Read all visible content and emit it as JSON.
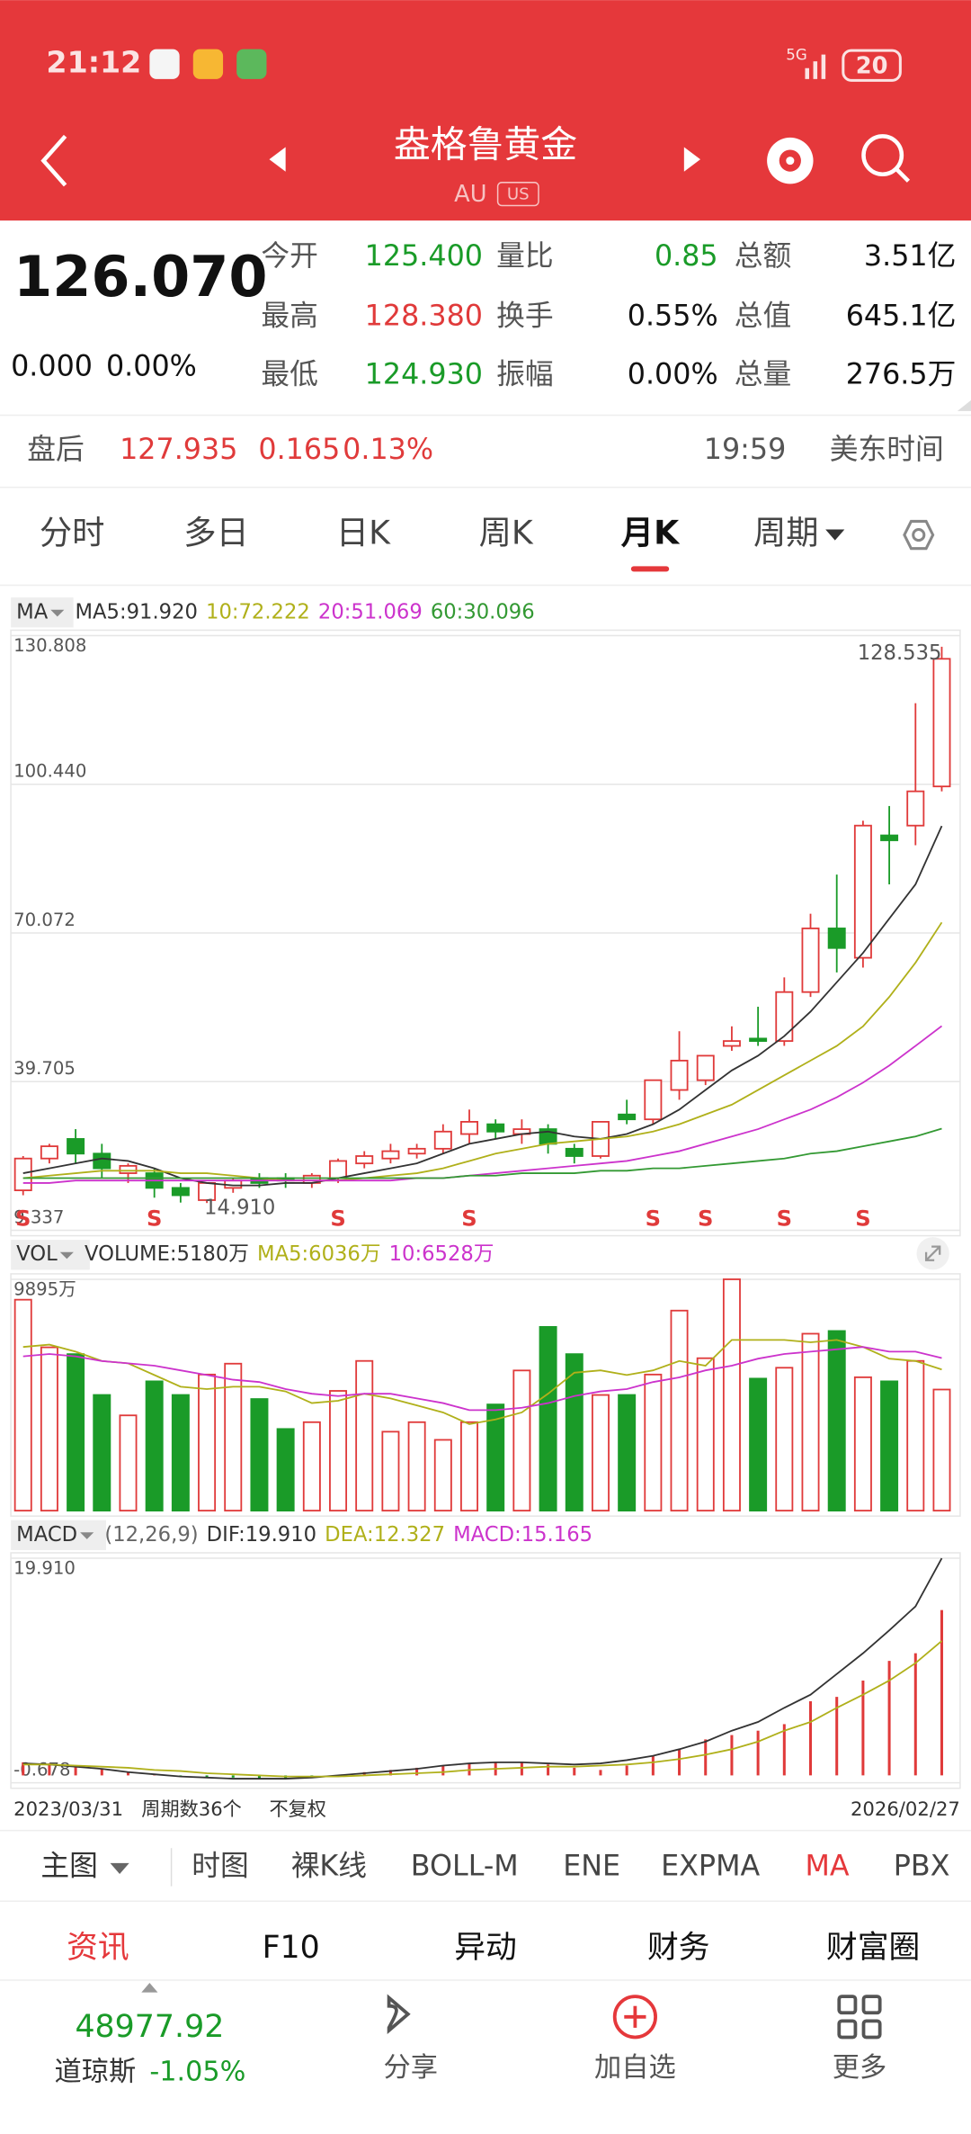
{
  "status": {
    "time": "21:12",
    "network": "5G",
    "battery": "20"
  },
  "header": {
    "title": "盎格鲁黄金",
    "ticker": "AU",
    "market": "US"
  },
  "quote": {
    "price": "126.070",
    "change": "0.000",
    "change_pct": "0.00%",
    "fields": [
      [
        {
          "label": "今开",
          "value": "125.400",
          "color": "#1a9b28"
        },
        {
          "label": "量比",
          "value": "0.85",
          "color": "#1a9b28"
        },
        {
          "label": "总额",
          "value": "3.51亿",
          "color": "#111111"
        }
      ],
      [
        {
          "label": "最高",
          "value": "128.380",
          "color": "#e03a3a"
        },
        {
          "label": "换手",
          "value": "0.55%",
          "color": "#111111"
        },
        {
          "label": "总值",
          "value": "645.1亿",
          "color": "#111111"
        }
      ],
      [
        {
          "label": "最低",
          "value": "124.930",
          "color": "#1a9b28"
        },
        {
          "label": "振幅",
          "value": "0.00%",
          "color": "#111111"
        },
        {
          "label": "总量",
          "value": "276.5万",
          "color": "#111111"
        }
      ]
    ]
  },
  "after_hours": {
    "label": "盘后",
    "price": "127.935",
    "change": "0.165",
    "change_pct": "0.13%",
    "time": "19:59",
    "zone": "美东时间"
  },
  "tabs": {
    "items": [
      "分时",
      "多日",
      "日K",
      "周K",
      "月K",
      "周期"
    ],
    "active": 4
  },
  "chart_data": [
    {
      "type": "candlestick",
      "indicator": "MA",
      "up_color": "#e03a3a",
      "down_color": "#1a9b28",
      "candles": {
        "open": [
          17.5,
          24,
          28,
          25,
          21,
          21,
          18,
          15.5,
          18,
          20,
          20,
          19,
          20,
          23,
          24,
          25,
          26,
          29,
          31,
          29,
          30,
          26,
          24.5,
          33,
          32,
          38,
          40,
          47,
          48.5,
          48,
          58,
          71,
          65,
          90,
          92,
          100
        ],
        "high": [
          24.5,
          27,
          30,
          27,
          23,
          22,
          19,
          19,
          20,
          21,
          21,
          21,
          24,
          25.5,
          27,
          27,
          31,
          34,
          32,
          32,
          31,
          27,
          31,
          36,
          40,
          50,
          45,
          51,
          55,
          61,
          74,
          82,
          93,
          96,
          117,
          128.535
        ],
        "low": [
          16.5,
          23,
          23,
          20,
          19,
          16,
          15,
          14.91,
          17,
          18,
          18,
          18,
          19,
          22,
          23,
          24,
          25,
          27,
          28,
          27,
          25,
          23,
          24,
          31,
          31,
          36,
          39,
          46,
          47,
          47,
          57,
          62,
          63,
          80,
          88,
          99
        ],
        "close": [
          24,
          26.5,
          25,
          22,
          22.5,
          18,
          16.5,
          19,
          19.5,
          19,
          19.5,
          20.5,
          23.5,
          24.5,
          25.5,
          26,
          29.5,
          31.5,
          29.5,
          30,
          27,
          24.5,
          31.5,
          32,
          40,
          44,
          45,
          48,
          48,
          58,
          71,
          67,
          92,
          89,
          99,
          126.07
        ]
      },
      "series": [
        {
          "name": "MA5:91.920",
          "color": "#333333",
          "values": [
            21,
            22,
            23,
            24,
            23.5,
            22,
            20,
            19,
            18.5,
            18.5,
            19,
            19,
            20,
            21,
            22,
            23,
            25,
            27,
            28,
            29,
            29.5,
            28.5,
            28,
            29,
            31,
            34,
            38,
            42,
            45,
            49,
            54,
            60,
            66,
            73,
            80,
            91.92
          ]
        },
        {
          "name": "10:72.222",
          "color": "#b0b01a",
          "values": [
            20,
            20.5,
            21,
            21.5,
            21.5,
            21.5,
            21,
            21,
            20.5,
            20,
            19.5,
            19.5,
            19.5,
            20,
            20.5,
            21,
            22,
            23.5,
            25,
            26,
            27,
            27.5,
            28,
            28.5,
            29.5,
            31,
            33,
            35,
            38,
            41,
            44,
            47,
            51,
            57,
            64,
            72.222
          ]
        },
        {
          "name": "20:51.069",
          "color": "#cc33cc",
          "values": [
            19,
            19,
            19.5,
            19.5,
            19.5,
            19.5,
            19.5,
            19.5,
            19.5,
            19.5,
            19.5,
            19.5,
            19.5,
            19.5,
            19.5,
            20,
            20,
            20.5,
            21,
            21.5,
            22,
            22.5,
            23,
            23.5,
            24.5,
            25.5,
            27,
            28.5,
            30,
            32,
            34,
            36.5,
            39.5,
            43,
            47,
            51.069
          ]
        },
        {
          "name": "60:30.096",
          "color": "#339933",
          "values": [
            20,
            20,
            20,
            20,
            20,
            20,
            20,
            20,
            20,
            20,
            20,
            20,
            20,
            20,
            20,
            20,
            20,
            20.5,
            20.5,
            21,
            21,
            21,
            21.5,
            21.5,
            22,
            22,
            22.5,
            23,
            23.5,
            24,
            25,
            25.5,
            26.5,
            27.5,
            28.5,
            30.096
          ]
        }
      ],
      "ylim": [
        9.337,
        130.808
      ],
      "yticks": [
        130.808,
        {
          "value": 100.44,
          "label": "100.440"
        },
        70.072,
        39.705,
        9.337
      ],
      "annotations": [
        {
          "label": "128.535",
          "index": 35
        },
        {
          "label": "14.910",
          "index": 7
        }
      ],
      "signals": {
        "label": "S",
        "indices": [
          0,
          5,
          12,
          17,
          24,
          26,
          29,
          32
        ]
      }
    },
    {
      "type": "bar",
      "indicator": "VOL",
      "series": [
        {
          "name": "VOLUME:5180万",
          "color": "#333333",
          "values": [
            9022,
            6985,
            6694,
            4947,
            4074,
            5530,
            4947,
            5821,
            6286,
            4773,
            3492,
            3783,
            5122,
            6403,
            3376,
            3783,
            3027,
            3783,
            4540,
            5995,
            7858,
            6694,
            4947,
            4947,
            5821,
            8556,
            6519,
            9895,
            5646,
            6112,
            7567,
            7683,
            5704,
            5530,
            6403,
            5180
          ]
        },
        {
          "name": "MA5:6036万",
          "color": "#b0b01a",
          "values": [
            7000,
            7100,
            6800,
            6400,
            6300,
            5800,
            5300,
            5200,
            5300,
            5300,
            5100,
            4600,
            4700,
            5000,
            4800,
            4500,
            4200,
            3700,
            3900,
            4200,
            5000,
            5900,
            6000,
            5800,
            6000,
            6400,
            6200,
            7300,
            7300,
            7300,
            7200,
            7300,
            7000,
            6500,
            6400,
            6036
          ]
        },
        {
          "name": "10:6528万",
          "color": "#cc33cc",
          "values": [
            6600,
            6700,
            6600,
            6400,
            6300,
            6200,
            6000,
            5800,
            5600,
            5500,
            5200,
            5000,
            4900,
            5000,
            5000,
            4800,
            4600,
            4300,
            4300,
            4400,
            4600,
            4900,
            5100,
            5200,
            5500,
            5700,
            6000,
            6200,
            6500,
            6700,
            6800,
            6900,
            7000,
            6800,
            6800,
            6528
          ]
        }
      ],
      "ylim": [
        0,
        9895
      ],
      "yticks": [
        {
          "value": 9895,
          "label": "9895万"
        }
      ]
    },
    {
      "type": "macd",
      "indicator": "MACD",
      "params": "(12,26,9)",
      "up_color": "#e03a3a",
      "down_color": "#1a9b28",
      "series": [
        {
          "name": "DIF:19.910",
          "color": "#333333",
          "values": [
            1.1,
            1,
            0.8,
            0.6,
            0.3,
            0.1,
            -0.1,
            -0.2,
            -0.3,
            -0.3,
            -0.3,
            -0.2,
            0,
            0.2,
            0.4,
            0.6,
            0.9,
            1.1,
            1.2,
            1.2,
            1.1,
            1,
            1.1,
            1.4,
            1.8,
            2.4,
            3.1,
            4.1,
            4.9,
            6.2,
            7.4,
            9.3,
            11.2,
            13.3,
            15.5,
            19.91
          ]
        },
        {
          "name": "DEA:12.327",
          "color": "#b0b01a",
          "values": [
            1,
            1,
            0.9,
            0.8,
            0.7,
            0.5,
            0.4,
            0.2,
            0.1,
            0,
            -0.1,
            -0.1,
            -0.1,
            0,
            0.1,
            0.2,
            0.3,
            0.5,
            0.6,
            0.7,
            0.8,
            0.8,
            0.9,
            1,
            1.2,
            1.5,
            1.9,
            2.4,
            3.1,
            4.1,
            4.9,
            6.2,
            7.4,
            8.7,
            10.3,
            12.327
          ]
        },
        {
          "name": "MACD:15.165",
          "color": "#cc33cc",
          "values": [
            1.2,
            1.1,
            0.9,
            0.6,
            0.3,
            0.1,
            -0.1,
            -0.2,
            -0.2,
            -0.3,
            -0.3,
            -0.2,
            0,
            0.3,
            0.5,
            0.7,
            0.9,
            1.1,
            1.2,
            1.2,
            1,
            0.7,
            0.5,
            0.9,
            1.8,
            2.4,
            3.3,
            3.7,
            4.1,
            4.7,
            6.8,
            7.2,
            8.7,
            10.5,
            11.2,
            15.165
          ]
        }
      ],
      "ylim": [
        -0.678,
        19.91
      ],
      "yticks": [
        {
          "value": 19.91,
          "label": "19.910"
        },
        -0.678
      ]
    }
  ],
  "footer": {
    "start": "2023/03/31",
    "periods": "周期数36个",
    "adjust": "不复权",
    "end": "2026/02/27"
  },
  "indicators": {
    "label": "主图",
    "items": [
      "时图",
      "裸K线",
      "BOLL-M",
      "ENE",
      "EXPMA",
      "MA",
      "PBX"
    ],
    "active": 5
  },
  "sections": {
    "items": [
      "资讯",
      "F10",
      "异动",
      "财务",
      "财富圈"
    ],
    "active": 0
  },
  "nav": {
    "index_value": "48977.92",
    "index_name": "道琼斯",
    "index_change": "-1.05%",
    "items": [
      "分享",
      "加自选",
      "更多"
    ]
  }
}
